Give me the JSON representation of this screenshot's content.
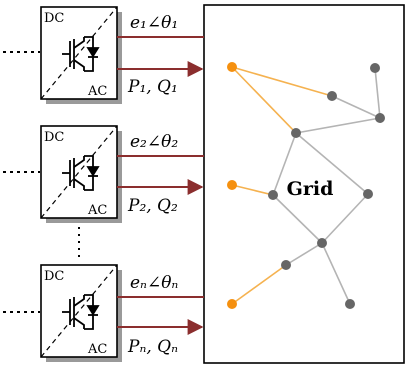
{
  "grid_label": "Grid",
  "converters": [
    {
      "dc_label": "DC",
      "ac_label": "AC",
      "voltage_label": "e₁∠θ₁",
      "power_label": "P₁, Q₁"
    },
    {
      "dc_label": "DC",
      "ac_label": "AC",
      "voltage_label": "e₂∠θ₂",
      "power_label": "P₂, Q₂"
    },
    {
      "dc_label": "DC",
      "ac_label": "AC",
      "voltage_label": "eₙ∠θₙ",
      "power_label": "Pₙ, Qₙ"
    }
  ],
  "colors": {
    "line": "#8b2e2e",
    "node_grey": "#666666",
    "node_orange": "#f5900f",
    "edge_grey": "#b4b4b4",
    "edge_orange": "#f5b250",
    "box_shadow": "#9a9a9a"
  }
}
